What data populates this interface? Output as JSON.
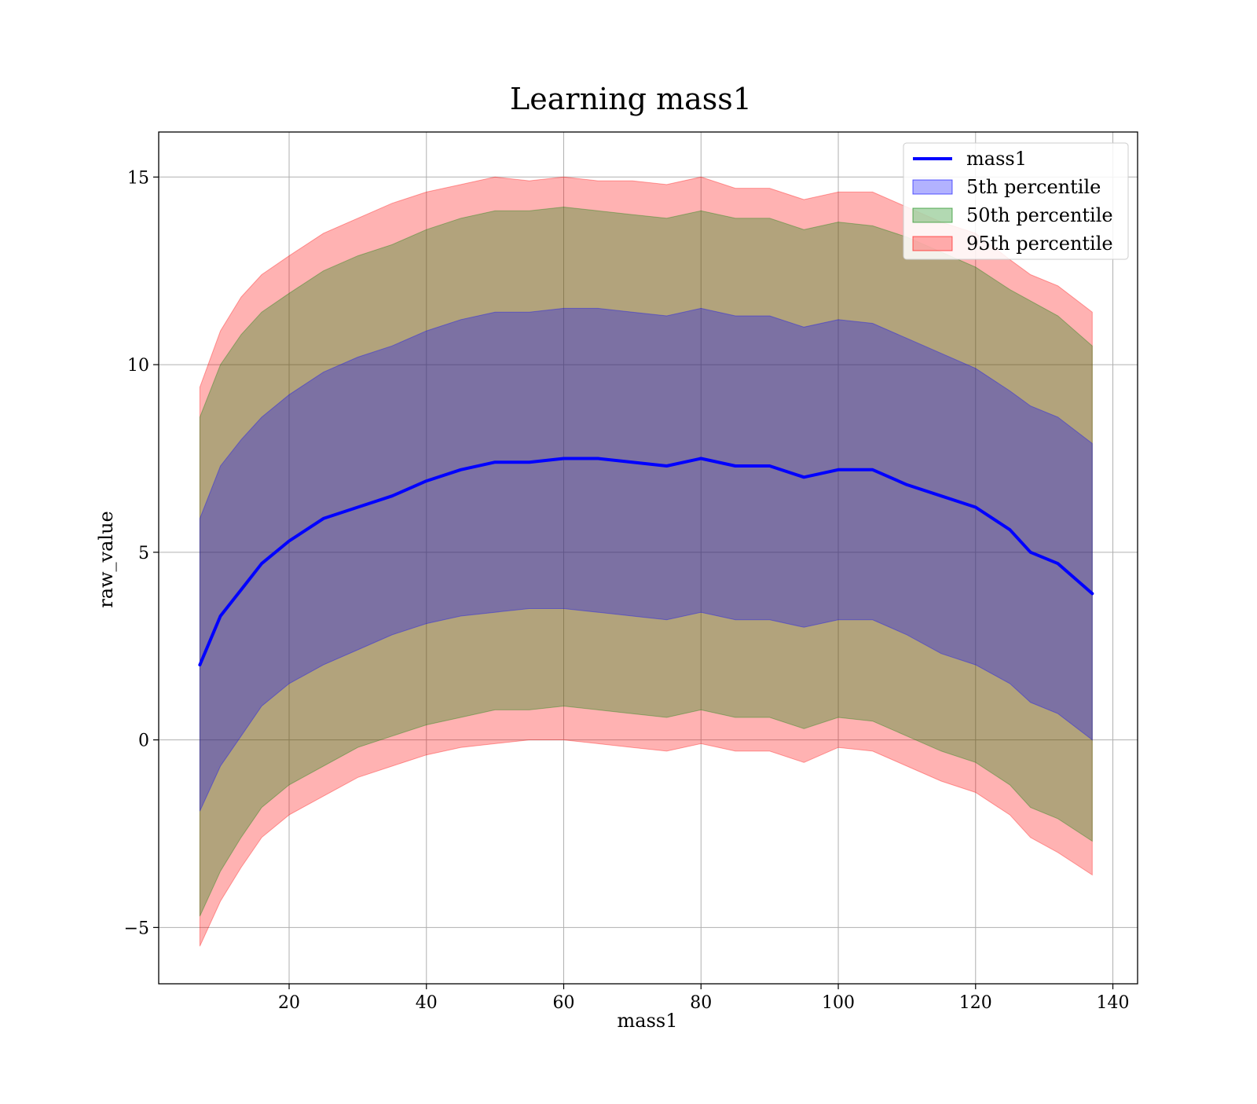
{
  "chart_data": {
    "type": "area",
    "title": "Learning mass1",
    "xlabel": "mass1",
    "ylabel": "raw_value",
    "xlim": [
      1,
      143.6
    ],
    "ylim": [
      -6.5,
      16.2
    ],
    "xticks": [
      20,
      40,
      60,
      80,
      100,
      120,
      140
    ],
    "xtick_labels": [
      "20",
      "40",
      "60",
      "80",
      "100",
      "120",
      "140"
    ],
    "yticks": [
      -5,
      0,
      5,
      10,
      15
    ],
    "ytick_labels": [
      "−5",
      "0",
      "5",
      "10",
      "15"
    ],
    "grid": true,
    "legend_position": "top-right",
    "x": [
      7,
      10,
      13,
      16,
      20,
      25,
      30,
      35,
      40,
      45,
      50,
      55,
      60,
      65,
      70,
      75,
      80,
      85,
      90,
      95,
      100,
      105,
      110,
      115,
      120,
      125,
      128,
      132,
      137
    ],
    "series": [
      {
        "name": "mass1",
        "kind": "line",
        "color": "#0000ff",
        "values": [
          2.0,
          3.3,
          4.0,
          4.7,
          5.3,
          5.9,
          6.2,
          6.5,
          6.9,
          7.2,
          7.4,
          7.4,
          7.5,
          7.5,
          7.4,
          7.3,
          7.5,
          7.3,
          7.3,
          7.0,
          7.2,
          7.2,
          6.8,
          6.5,
          6.2,
          5.6,
          5.0,
          4.7,
          3.9
        ]
      },
      {
        "name": "5th percentile",
        "kind": "band",
        "color": "#0000ff",
        "opacity": 0.3,
        "lower": [
          -1.9,
          -0.7,
          0.1,
          0.9,
          1.5,
          2.0,
          2.4,
          2.8,
          3.1,
          3.3,
          3.4,
          3.5,
          3.5,
          3.4,
          3.3,
          3.2,
          3.4,
          3.2,
          3.2,
          3.0,
          3.2,
          3.2,
          2.8,
          2.3,
          2.0,
          1.5,
          1.0,
          0.7,
          0.0
        ],
        "upper": [
          5.9,
          7.3,
          8.0,
          8.6,
          9.2,
          9.8,
          10.2,
          10.5,
          10.9,
          11.2,
          11.4,
          11.4,
          11.5,
          11.5,
          11.4,
          11.3,
          11.5,
          11.3,
          11.3,
          11.0,
          11.2,
          11.1,
          10.7,
          10.3,
          9.9,
          9.3,
          8.9,
          8.6,
          7.9
        ]
      },
      {
        "name": "50th percentile",
        "kind": "band",
        "color": "#008000",
        "opacity": 0.3,
        "lower": [
          -4.7,
          -3.5,
          -2.6,
          -1.8,
          -1.2,
          -0.7,
          -0.2,
          0.1,
          0.4,
          0.6,
          0.8,
          0.8,
          0.9,
          0.8,
          0.7,
          0.6,
          0.8,
          0.6,
          0.6,
          0.3,
          0.6,
          0.5,
          0.1,
          -0.3,
          -0.6,
          -1.2,
          -1.8,
          -2.1,
          -2.7
        ],
        "upper": [
          8.6,
          10.0,
          10.8,
          11.4,
          11.9,
          12.5,
          12.9,
          13.2,
          13.6,
          13.9,
          14.1,
          14.1,
          14.2,
          14.1,
          14.0,
          13.9,
          14.1,
          13.9,
          13.9,
          13.6,
          13.8,
          13.7,
          13.4,
          13.0,
          12.6,
          12.0,
          11.7,
          11.3,
          10.5
        ]
      },
      {
        "name": "95th percentile",
        "kind": "band",
        "color": "#ff0000",
        "opacity": 0.3,
        "lower": [
          -5.5,
          -4.3,
          -3.4,
          -2.6,
          -2.0,
          -1.5,
          -1.0,
          -0.7,
          -0.4,
          -0.2,
          -0.1,
          0.0,
          0.0,
          -0.1,
          -0.2,
          -0.3,
          -0.1,
          -0.3,
          -0.3,
          -0.6,
          -0.2,
          -0.3,
          -0.7,
          -1.1,
          -1.4,
          -2.0,
          -2.6,
          -3.0,
          -3.6
        ],
        "upper": [
          9.4,
          10.9,
          11.8,
          12.4,
          12.9,
          13.5,
          13.9,
          14.3,
          14.6,
          14.8,
          15.0,
          14.9,
          15.0,
          14.9,
          14.9,
          14.8,
          15.0,
          14.7,
          14.7,
          14.4,
          14.6,
          14.6,
          14.2,
          13.8,
          13.5,
          12.8,
          12.4,
          12.1,
          11.4
        ]
      }
    ]
  }
}
